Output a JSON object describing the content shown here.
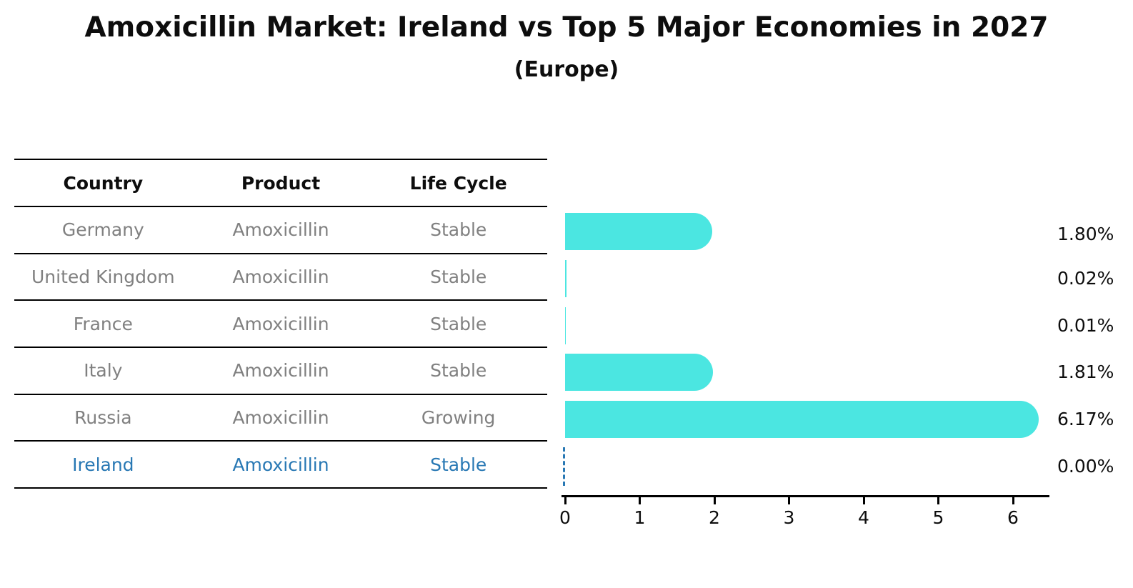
{
  "title": "Amoxicillin Market: Ireland vs Top 5 Major Economies in 2027",
  "subtitle": "(Europe)",
  "table": {
    "headers": [
      "Country",
      "Product",
      "Life Cycle"
    ],
    "rows": [
      {
        "country": "Germany",
        "product": "Amoxicillin",
        "life_cycle": "Stable",
        "highlight": false
      },
      {
        "country": "United Kingdom",
        "product": "Amoxicillin",
        "life_cycle": "Stable",
        "highlight": false
      },
      {
        "country": "France",
        "product": "Amoxicillin",
        "life_cycle": "Stable",
        "highlight": false
      },
      {
        "country": "Italy",
        "product": "Amoxicillin",
        "life_cycle": "Stable",
        "highlight": false
      },
      {
        "country": "Russia",
        "product": "Amoxicillin",
        "life_cycle": "Growing",
        "highlight": false
      },
      {
        "country": "Ireland",
        "product": "Amoxicillin",
        "life_cycle": "Stable",
        "highlight": true
      }
    ]
  },
  "chart_data": {
    "type": "bar",
    "orientation": "horizontal",
    "title": "Amoxicillin Market: Ireland vs Top 5 Major Economies in 2027",
    "subtitle": "(Europe)",
    "categories": [
      "Germany",
      "United Kingdom",
      "France",
      "Italy",
      "Russia",
      "Ireland"
    ],
    "values": [
      1.8,
      0.02,
      0.01,
      1.81,
      6.17,
      0.0
    ],
    "value_labels": [
      "1.80%",
      "0.02%",
      "0.01%",
      "1.81%",
      "6.17%",
      "0.00%"
    ],
    "xticks": [
      "0",
      "1",
      "2",
      "3",
      "4",
      "5",
      "6"
    ],
    "xlim": [
      0,
      6.5
    ],
    "grid": false,
    "legend": false,
    "bar_color": "#4BE6E1",
    "highlight_category": "Ireland",
    "highlight_color": "#2878B4",
    "highlight_marker": "dashed-line-at-zero",
    "row_text_color": "#808080",
    "label_text_color": "#0d0d0d"
  }
}
